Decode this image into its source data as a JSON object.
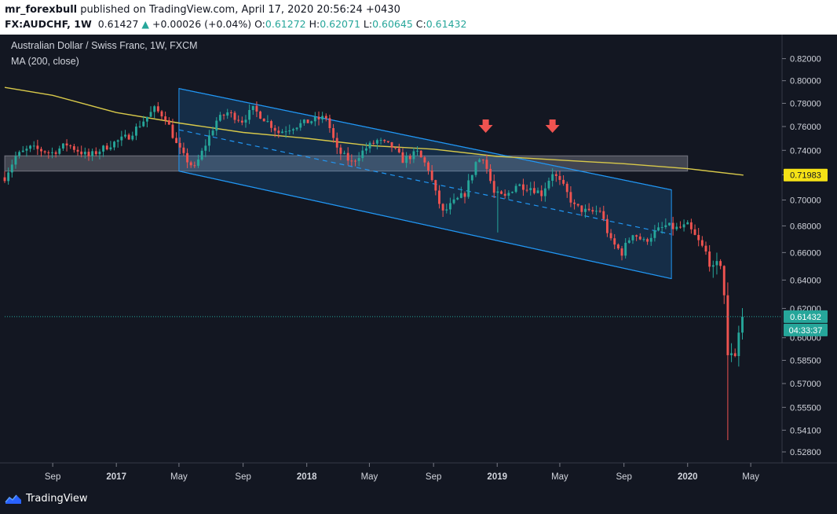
{
  "header": {
    "author": "mr_forexbull",
    "published_text": "published on TradingView.com, April 17, 2020 20:56:24 +0430",
    "symbol": "FX:AUDCHF, 1W",
    "last": "0.61427",
    "change_arrow": "▲",
    "change": "+0.00026 (+0.04%)",
    "o_label": "O:",
    "o_value": "0.61272",
    "h_label": "H:",
    "h_value": "0.62071",
    "l_label": "L:",
    "l_value": "0.60645",
    "c_label": "C:",
    "c_value": "0.61432"
  },
  "legend": {
    "title": "Australian Dollar / Swiss Franc, 1W, FXCM",
    "indicator": "MA (200, close)"
  },
  "price_tags": {
    "ma_value": "0.71983",
    "last_price": "0.61432",
    "countdown": "04:33:37"
  },
  "footer": {
    "brand": "TradingView",
    "logo_icon": "tradingview-logo-icon"
  },
  "colors": {
    "background": "#131722",
    "bullish": "#26a69a",
    "bearish": "#ef5350",
    "ma_line": "#d8c94a",
    "channel_line": "#2196f3",
    "arrow": "#ef5350"
  },
  "chart_data": {
    "type": "candlestick",
    "title": "Australian Dollar / Swiss Franc, 1W, FXCM",
    "y_ticks": [
      0.82,
      0.8,
      0.78,
      0.76,
      0.74,
      0.72,
      0.7,
      0.68,
      0.66,
      0.64,
      0.62,
      0.6,
      0.585,
      0.57,
      0.555,
      0.541,
      0.528
    ],
    "y_tick_labels": [
      "0.82000",
      "0.80000",
      "0.78000",
      "0.76000",
      "0.74000",
      "0.72000",
      "0.70000",
      "0.68000",
      "0.66000",
      "0.64000",
      "0.62000",
      "0.60000",
      "0.58500",
      "0.57000",
      "0.55500",
      "0.54100",
      "0.52800"
    ],
    "y_scale": "logarithmic",
    "x_ticks": [
      "Sep",
      "2017",
      "May",
      "Sep",
      "2018",
      "May",
      "Sep",
      "2019",
      "May",
      "Sep",
      "2020",
      "May"
    ],
    "x_tick_dates": [
      "2016-09-01",
      "2017-01-01",
      "2017-05-01",
      "2017-09-01",
      "2018-01-01",
      "2018-05-01",
      "2018-09-01",
      "2019-01-01",
      "2019-05-01",
      "2019-09-01",
      "2020-01-01",
      "2020-05-01"
    ],
    "bold_x_ticks": [
      "2017",
      "2018",
      "2019",
      "2020"
    ],
    "x_range": [
      "2016-06-01",
      "2020-06-30"
    ],
    "y_range": [
      0.522,
      0.835
    ],
    "waypoints": [
      [
        "2016-06-01",
        0.718
      ],
      [
        "2016-06-22",
        0.735
      ],
      [
        "2016-07-20",
        0.742
      ],
      [
        "2016-08-31",
        0.738
      ],
      [
        "2016-09-28",
        0.745
      ],
      [
        "2016-11-09",
        0.735
      ],
      [
        "2016-12-21",
        0.745
      ],
      [
        "2017-01-25",
        0.752
      ],
      [
        "2017-02-22",
        0.765
      ],
      [
        "2017-03-15",
        0.775
      ],
      [
        "2017-04-05",
        0.768
      ],
      [
        "2017-04-26",
        0.745
      ],
      [
        "2017-05-10",
        0.735
      ],
      [
        "2017-05-31",
        0.725
      ],
      [
        "2017-06-21",
        0.745
      ],
      [
        "2017-07-12",
        0.765
      ],
      [
        "2017-08-02",
        0.772
      ],
      [
        "2017-08-30",
        0.765
      ],
      [
        "2017-09-20",
        0.775
      ],
      [
        "2017-10-18",
        0.764
      ],
      [
        "2017-11-08",
        0.755
      ],
      [
        "2017-12-06",
        0.76
      ],
      [
        "2018-01-10",
        0.765
      ],
      [
        "2018-02-07",
        0.768
      ],
      [
        "2018-02-28",
        0.74
      ],
      [
        "2018-03-28",
        0.73
      ],
      [
        "2018-04-25",
        0.742
      ],
      [
        "2018-05-16",
        0.748
      ],
      [
        "2018-06-13",
        0.743
      ],
      [
        "2018-07-04",
        0.732
      ],
      [
        "2018-08-01",
        0.738
      ],
      [
        "2018-08-22",
        0.725
      ],
      [
        "2018-09-05",
        0.705
      ],
      [
        "2018-09-19",
        0.69
      ],
      [
        "2018-10-10",
        0.698
      ],
      [
        "2018-10-31",
        0.705
      ],
      [
        "2018-11-21",
        0.73
      ],
      [
        "2018-12-05",
        0.735
      ],
      [
        "2018-12-26",
        0.705
      ],
      [
        "2019-01-16",
        0.702
      ],
      [
        "2019-02-06",
        0.712
      ],
      [
        "2019-03-06",
        0.71
      ],
      [
        "2019-03-27",
        0.705
      ],
      [
        "2019-04-17",
        0.722
      ],
      [
        "2019-05-08",
        0.71
      ],
      [
        "2019-05-29",
        0.695
      ],
      [
        "2019-06-26",
        0.69
      ],
      [
        "2019-07-17",
        0.692
      ],
      [
        "2019-08-07",
        0.668
      ],
      [
        "2019-08-28",
        0.66
      ],
      [
        "2019-09-18",
        0.675
      ],
      [
        "2019-10-09",
        0.668
      ],
      [
        "2019-10-30",
        0.675
      ],
      [
        "2019-11-20",
        0.68
      ],
      [
        "2019-12-11",
        0.678
      ],
      [
        "2020-01-01",
        0.68
      ],
      [
        "2020-01-22",
        0.668
      ],
      [
        "2020-02-05",
        0.66
      ],
      [
        "2020-02-19",
        0.645
      ],
      [
        "2020-03-04",
        0.652
      ],
      [
        "2020-03-11",
        0.63
      ],
      [
        "2020-03-18",
        0.585
      ],
      [
        "2020-03-25",
        0.592
      ],
      [
        "2020-04-01",
        0.59
      ],
      [
        "2020-04-08",
        0.605
      ],
      [
        "2020-04-15",
        0.6143
      ]
    ],
    "spikes": [
      {
        "date": "2019-01-02",
        "low": 0.675
      },
      {
        "date": "2020-03-18",
        "low": 0.535
      }
    ],
    "ma": {
      "name": "MA (200, close)",
      "points": [
        [
          "2016-06-01",
          0.794
        ],
        [
          "2016-09-01",
          0.787
        ],
        [
          "2017-01-01",
          0.772
        ],
        [
          "2017-05-01",
          0.763
        ],
        [
          "2017-09-01",
          0.755
        ],
        [
          "2018-01-01",
          0.75
        ],
        [
          "2018-05-01",
          0.744
        ],
        [
          "2018-09-01",
          0.741
        ],
        [
          "2019-01-01",
          0.735
        ],
        [
          "2019-05-01",
          0.732
        ],
        [
          "2019-09-01",
          0.729
        ],
        [
          "2020-01-01",
          0.725
        ],
        [
          "2020-04-17",
          0.7198
        ]
      ]
    },
    "channel": {
      "upper": [
        [
          "2017-05-01",
          0.793
        ],
        [
          "2019-12-01",
          0.708
        ]
      ],
      "lower": [
        [
          "2017-05-01",
          0.723
        ],
        [
          "2019-12-01",
          0.641
        ]
      ]
    },
    "zone": {
      "from": "2016-06-01",
      "to": "2020-01-01",
      "y_top": 0.7355,
      "y_bottom": 0.723
    },
    "arrows": [
      "2018-12-10",
      "2019-04-17"
    ],
    "last_price": 0.61432,
    "ma_last": 0.71983
  }
}
